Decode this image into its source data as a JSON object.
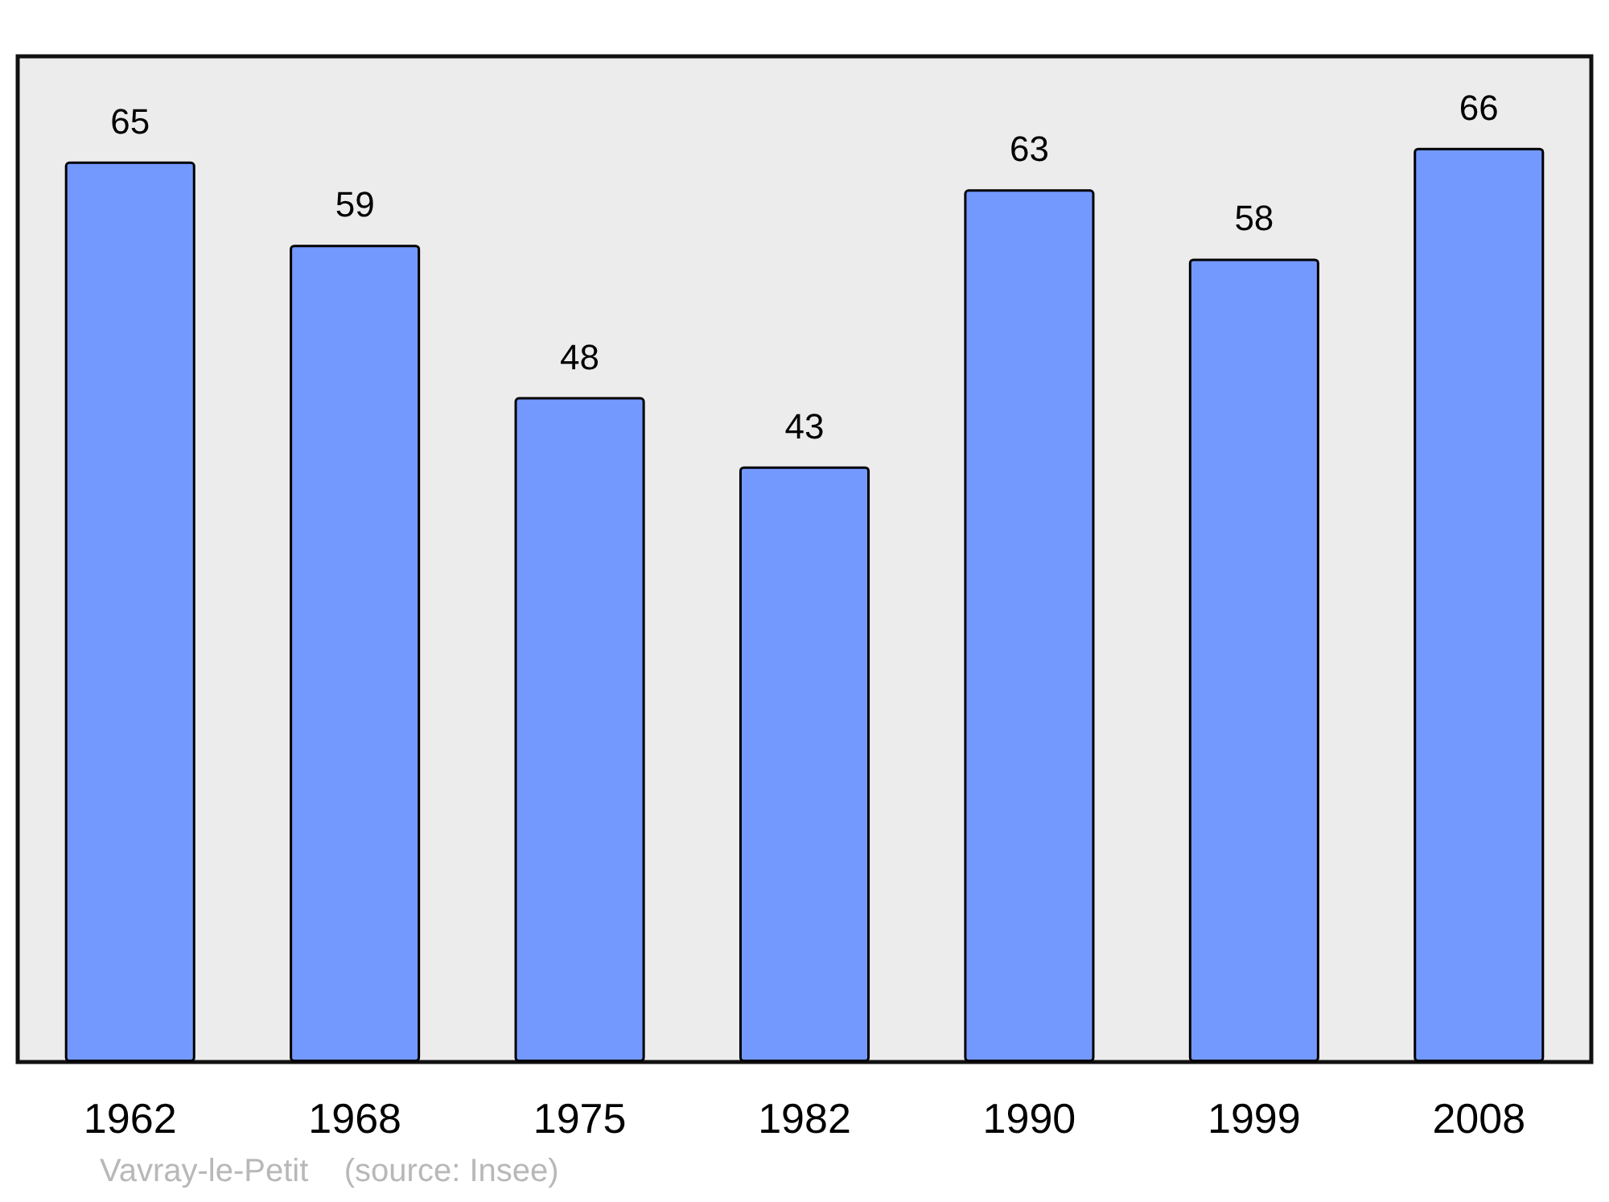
{
  "chart_data": {
    "type": "bar",
    "categories": [
      "1962",
      "1968",
      "1975",
      "1982",
      "1990",
      "1999",
      "2008"
    ],
    "values": [
      65,
      59,
      48,
      43,
      63,
      58,
      66
    ],
    "color": "#7399ff",
    "data_labels": true,
    "annotations": [
      "Vavray-le-Petit    (source: Insee)"
    ]
  }
}
